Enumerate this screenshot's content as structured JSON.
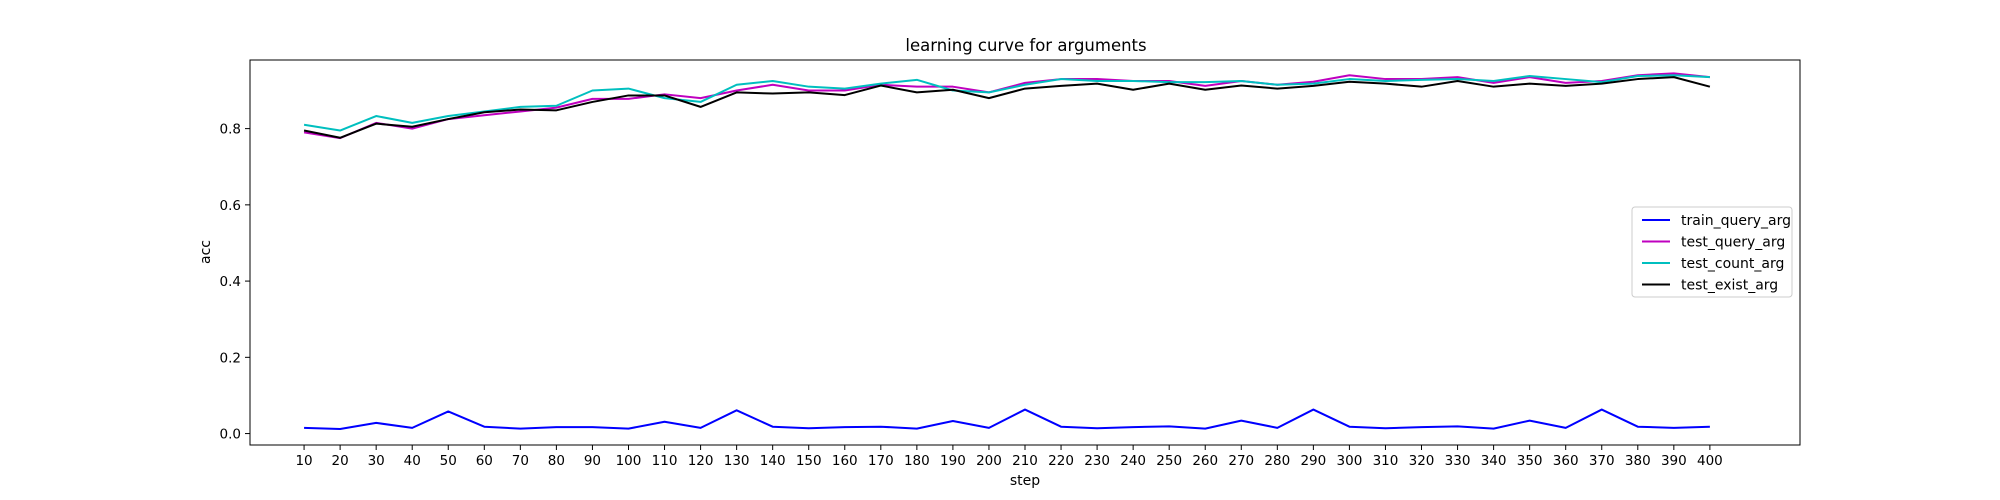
{
  "chart_data": {
    "type": "line",
    "title": "learning curve for arguments",
    "xlabel": "step",
    "ylabel": "acc",
    "x": [
      10,
      20,
      30,
      40,
      50,
      60,
      70,
      80,
      90,
      100,
      110,
      120,
      130,
      140,
      150,
      160,
      170,
      180,
      190,
      200,
      210,
      220,
      230,
      240,
      250,
      260,
      270,
      280,
      290,
      300,
      310,
      320,
      330,
      340,
      350,
      360,
      370,
      380,
      390,
      400
    ],
    "xlim": [
      -5,
      425
    ],
    "ylim": [
      -0.03,
      0.98
    ],
    "yticks": [
      0.0,
      0.2,
      0.4,
      0.6,
      0.8
    ],
    "ytick_labels": [
      "0.0",
      "0.2",
      "0.4",
      "0.6",
      "0.8"
    ],
    "grid": false,
    "legend_position": "center-right",
    "series": [
      {
        "name": "train_query_arg",
        "color": "#0000ff",
        "values": [
          0.015,
          0.012,
          0.028,
          0.015,
          0.058,
          0.018,
          0.013,
          0.017,
          0.017,
          0.013,
          0.031,
          0.015,
          0.061,
          0.018,
          0.014,
          0.017,
          0.018,
          0.013,
          0.033,
          0.015,
          0.063,
          0.018,
          0.014,
          0.017,
          0.019,
          0.013,
          0.034,
          0.015,
          0.063,
          0.018,
          0.014,
          0.017,
          0.019,
          0.013,
          0.034,
          0.015,
          0.063,
          0.018,
          0.015,
          0.018
        ]
      },
      {
        "name": "test_query_arg",
        "color": "#bf00bf",
        "values": [
          0.79,
          0.775,
          0.815,
          0.8,
          0.825,
          0.835,
          0.845,
          0.855,
          0.878,
          0.878,
          0.89,
          0.88,
          0.9,
          0.915,
          0.9,
          0.9,
          0.915,
          0.91,
          0.91,
          0.895,
          0.92,
          0.93,
          0.93,
          0.925,
          0.925,
          0.912,
          0.925,
          0.915,
          0.923,
          0.94,
          0.93,
          0.93,
          0.935,
          0.92,
          0.935,
          0.92,
          0.925,
          0.94,
          0.945,
          0.935
        ]
      },
      {
        "name": "test_count_arg",
        "color": "#00bfbf",
        "values": [
          0.81,
          0.795,
          0.833,
          0.815,
          0.833,
          0.845,
          0.857,
          0.86,
          0.9,
          0.905,
          0.88,
          0.87,
          0.915,
          0.925,
          0.91,
          0.905,
          0.918,
          0.928,
          0.9,
          0.895,
          0.915,
          0.93,
          0.925,
          0.925,
          0.922,
          0.922,
          0.925,
          0.915,
          0.918,
          0.93,
          0.925,
          0.928,
          0.93,
          0.925,
          0.938,
          0.93,
          0.922,
          0.938,
          0.94,
          0.935
        ]
      },
      {
        "name": "test_exist_arg",
        "color": "#000000",
        "values": [
          0.795,
          0.776,
          0.813,
          0.805,
          0.825,
          0.843,
          0.85,
          0.848,
          0.87,
          0.887,
          0.887,
          0.857,
          0.895,
          0.892,
          0.895,
          0.888,
          0.913,
          0.895,
          0.902,
          0.88,
          0.905,
          0.912,
          0.918,
          0.902,
          0.918,
          0.902,
          0.913,
          0.905,
          0.912,
          0.923,
          0.918,
          0.91,
          0.925,
          0.91,
          0.918,
          0.912,
          0.918,
          0.93,
          0.935,
          0.91
        ]
      }
    ]
  }
}
